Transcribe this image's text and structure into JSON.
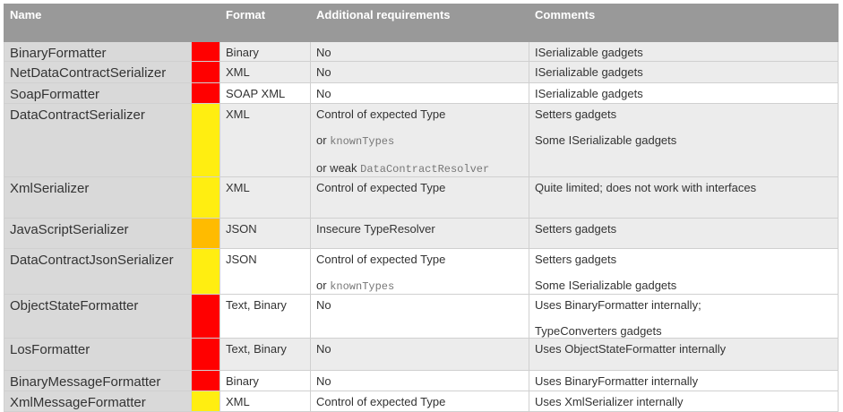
{
  "headers": {
    "name": "Name",
    "format": "Format",
    "requirements": "Additional requirements",
    "comments": "Comments"
  },
  "colors": {
    "red": "#ff0000",
    "yellow": "#ffee11",
    "orange": "#ffbb00",
    "header": "#999999"
  },
  "rows": [
    {
      "name": "BinaryFormatter",
      "risk": "red",
      "format": "Binary",
      "req": [
        {
          "t": "No"
        }
      ],
      "comments": [
        "ISerializable gadgets"
      ],
      "bg": "g",
      "h": 22
    },
    {
      "name": "NetDataContractSerializer",
      "risk": "red",
      "format": "XML",
      "req": [
        {
          "t": "No"
        }
      ],
      "comments": [
        "ISerializable gadgets"
      ],
      "bg": "g",
      "h": 24
    },
    {
      "name": "SoapFormatter",
      "risk": "red",
      "format": "SOAP XML",
      "req": [
        {
          "t": "No"
        }
      ],
      "comments": [
        "ISerializable gadgets"
      ],
      "bg": "w",
      "h": 23
    },
    {
      "name": "DataContractSerializer",
      "risk": "yellow",
      "format": "XML",
      "req": [
        {
          "t": "Control of expected Type"
        },
        {
          "t": "or ",
          "code": "knownTypes"
        },
        {
          "t": "or weak ",
          "code": "DataContractResolver"
        }
      ],
      "comments": [
        "Setters gadgets",
        "Some ISerializable gadgets"
      ],
      "bg": "g",
      "h": 79
    },
    {
      "name": "XmlSerializer",
      "risk": "yellow",
      "format": "XML",
      "req": [
        {
          "t": "Control of expected Type"
        }
      ],
      "comments": [
        "Quite limited; does not work with interfaces"
      ],
      "bg": "g",
      "h": 46
    },
    {
      "name": "JavaScriptSerializer",
      "risk": "orange",
      "format": "JSON",
      "req": [
        {
          "t": "Insecure TypeResolver"
        }
      ],
      "comments": [
        "Setters gadgets"
      ],
      "bg": "g",
      "h": 34
    },
    {
      "name": "DataContractJsonSerializer",
      "risk": "yellow",
      "format": "JSON",
      "req": [
        {
          "t": "Control of expected Type"
        },
        {
          "t": "or ",
          "code": "knownTypes"
        }
      ],
      "comments": [
        "Setters gadgets",
        "Some ISerializable gadgets"
      ],
      "bg": "w",
      "h": 48
    },
    {
      "name": "ObjectStateFormatter",
      "risk": "red",
      "format": "Text, Binary",
      "req": [
        {
          "t": "No"
        }
      ],
      "comments": [
        "Uses BinaryFormatter internally;",
        "TypeConverters gadgets"
      ],
      "bg": "w",
      "h": 49
    },
    {
      "name": "LosFormatter",
      "risk": "red",
      "format": "Text, Binary",
      "req": [
        {
          "t": "No"
        }
      ],
      "comments": [
        "Uses ObjectStateFormatter internally"
      ],
      "bg": "g",
      "h": 36
    },
    {
      "name": "BinaryMessageFormatter",
      "risk": "red",
      "format": "Binary",
      "req": [
        {
          "t": "No"
        }
      ],
      "comments": [
        "Uses BinaryFormatter internally"
      ],
      "bg": "w",
      "h": 23
    },
    {
      "name": "XmlMessageFormatter",
      "risk": "yellow",
      "format": "XML",
      "req": [
        {
          "t": "Control of expected Type"
        }
      ],
      "comments": [
        "Uses XmlSerializer internally"
      ],
      "bg": "w",
      "h": 23
    }
  ]
}
